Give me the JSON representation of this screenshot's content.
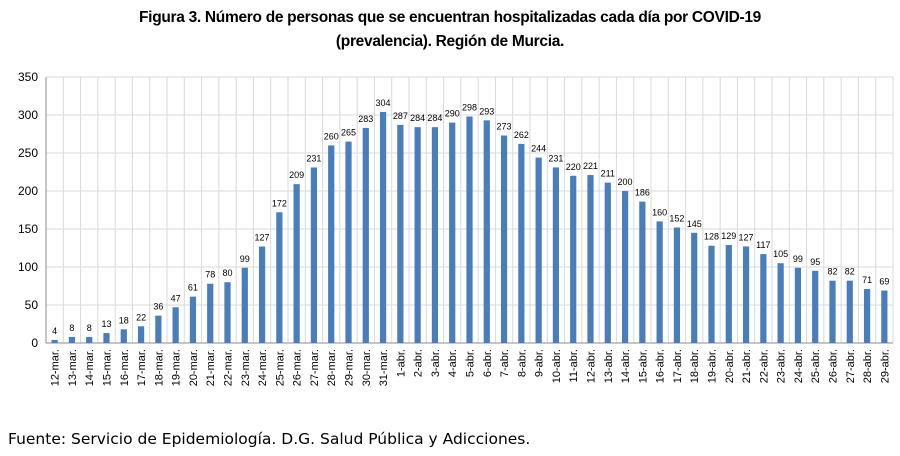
{
  "chart_data": {
    "type": "bar",
    "title": "Figura 3. Número de personas que se encuentran hospitalizadas cada día por COVID-19 (prevalencia). Región de Murcia.",
    "xlabel": "",
    "ylabel": "",
    "ylim": [
      0,
      350
    ],
    "yticks": [
      0,
      50,
      100,
      150,
      200,
      250,
      300,
      350
    ],
    "grid": true,
    "legend": "none",
    "bar_color": "#4a7ebb",
    "categories": [
      "12-mar.",
      "13-mar.",
      "14-mar.",
      "15-mar.",
      "16-mar.",
      "17-mar.",
      "18-mar.",
      "19-mar.",
      "20-mar.",
      "21-mar.",
      "22-mar.",
      "23-mar.",
      "24-mar.",
      "25-mar.",
      "26-mar.",
      "27-mar.",
      "28-mar.",
      "29-mar.",
      "30-mar.",
      "31-mar.",
      "1-abr.",
      "2-abr.",
      "3-abr.",
      "4-abr.",
      "5-abr.",
      "6-abr.",
      "7-abr.",
      "8-abr.",
      "9-abr.",
      "10-abr.",
      "11-abr.",
      "12-abr.",
      "13-abr.",
      "14-abr.",
      "15-abr.",
      "16-abr.",
      "17-abr.",
      "18-abr.",
      "19-abr.",
      "20-abr.",
      "21-abr.",
      "22-abr.",
      "23-abr.",
      "24-abr.",
      "25-abr.",
      "26-abr.",
      "27-abr.",
      "28-abr.",
      "29-abr."
    ],
    "values": [
      4,
      8,
      8,
      13,
      18,
      22,
      36,
      47,
      61,
      78,
      80,
      99,
      127,
      172,
      209,
      231,
      260,
      265,
      283,
      304,
      287,
      284,
      284,
      290,
      298,
      293,
      273,
      262,
      244,
      231,
      220,
      221,
      211,
      200,
      186,
      160,
      152,
      145,
      128,
      129,
      127,
      117,
      105,
      99,
      95,
      82,
      82,
      71,
      69
    ]
  },
  "source": "Fuente: Servicio de Epidemiología. D.G. Salud Pública y Adicciones."
}
